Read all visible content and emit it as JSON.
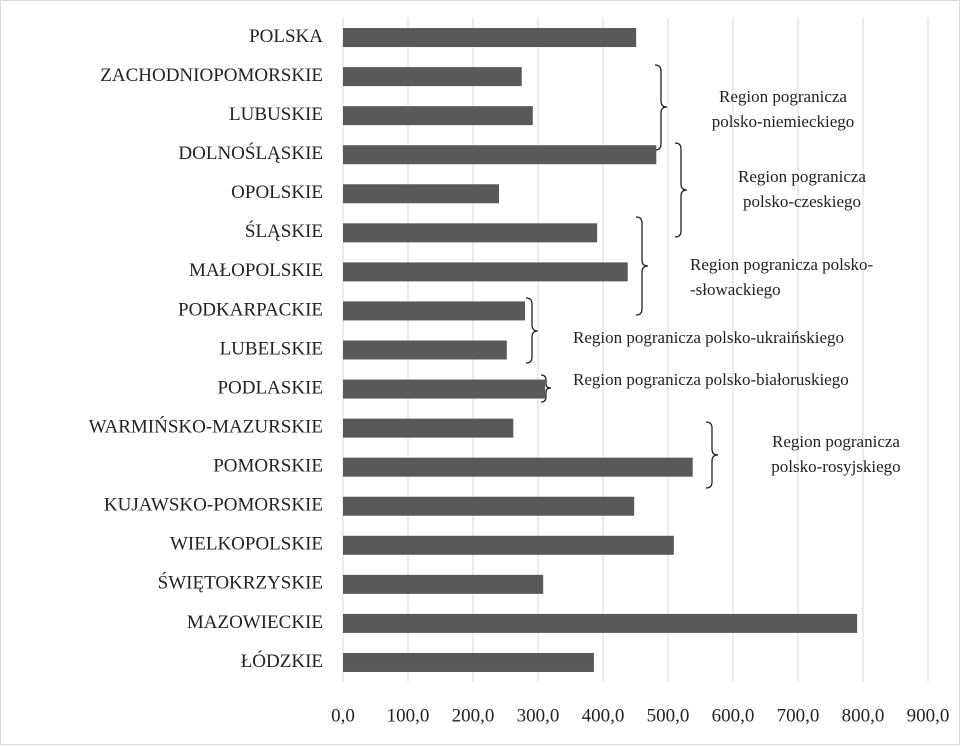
{
  "chart_data": {
    "type": "bar",
    "orientation": "horizontal",
    "categories": [
      "POLSKA",
      "ZACHODNIOPOMORSKIE",
      "LUBUSKIE",
      "DOLNOŚLĄSKIE",
      "OPOLSKIE",
      "ŚLĄSKIE",
      "MAŁOPOLSKIE",
      "PODKARPACKIE",
      "LUBELSKIE",
      "PODLASKIE",
      "WARMIŃSKO-MAZURSKIE",
      "POMORSKIE",
      "KUJAWSKO-POMORSKIE",
      "WIELKOPOLSKIE",
      "ŚWIĘTOKRZYSKIE",
      "MAZOWIECKIE",
      "ŁÓDZKIE"
    ],
    "values": [
      451,
      275,
      292,
      482,
      240,
      391,
      438,
      280,
      252,
      311,
      262,
      538,
      448,
      509,
      308,
      791,
      386
    ],
    "color": "#595959",
    "xlim": [
      0,
      900
    ],
    "xticks": [
      {
        "value": 0,
        "label": "0,0"
      },
      {
        "value": 100,
        "label": "100,0"
      },
      {
        "value": 200,
        "label": "200,0"
      },
      {
        "value": 300,
        "label": "300,0"
      },
      {
        "value": 400,
        "label": "400,0"
      },
      {
        "value": 500,
        "label": "500,0"
      },
      {
        "value": 600,
        "label": "600,0"
      },
      {
        "value": 700,
        "label": "700,0"
      },
      {
        "value": 800,
        "label": "800,0"
      },
      {
        "value": 900,
        "label": "900,0"
      }
    ],
    "grid": true,
    "annotations": [
      {
        "lines": [
          "Region pogranicza",
          "polsko-niemieckiego"
        ]
      },
      {
        "lines": [
          "Region pogranicza",
          "polsko-czeskiego"
        ]
      },
      {
        "lines": [
          "Region pogranicza polsko-",
          "-słowackiego"
        ]
      },
      {
        "lines": [
          "Region pogranicza polsko-ukraińskiego"
        ]
      },
      {
        "lines": [
          "Region pogranicza polsko-białoruskiego"
        ]
      },
      {
        "lines": [
          "Region pogranicza",
          "polsko-rosyjskiego"
        ]
      }
    ]
  }
}
